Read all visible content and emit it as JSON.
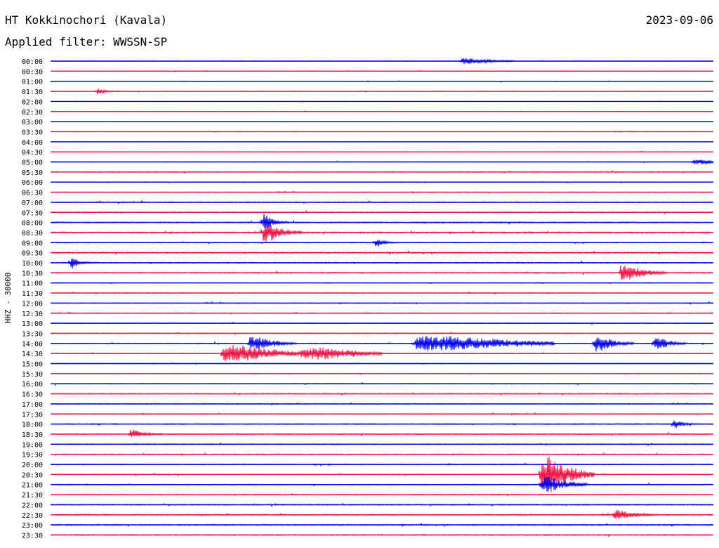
{
  "header": {
    "station": "HT Kokkinochori (Kavala)",
    "date": "2023-09-06",
    "filter_label": "Applied filter: WWSSN-SP"
  },
  "chart_data": {
    "type": "line",
    "title": "HT Kokkinochori (Kavala)",
    "ylabel": "HHZ - 30000",
    "categories": [
      "00:00",
      "00:30",
      "01:00",
      "01:30",
      "02:00",
      "02:30",
      "03:00",
      "03:30",
      "04:00",
      "04:30",
      "05:00",
      "05:30",
      "06:00",
      "06:30",
      "07:00",
      "07:30",
      "08:00",
      "08:30",
      "09:00",
      "09:30",
      "10:00",
      "10:30",
      "11:00",
      "11:30",
      "12:00",
      "12:30",
      "13:00",
      "13:30",
      "14:00",
      "14:30",
      "15:00",
      "15:30",
      "16:00",
      "16:30",
      "17:00",
      "17:30",
      "18:00",
      "18:30",
      "19:00",
      "19:30",
      "20:00",
      "20:30",
      "21:00",
      "21:30",
      "22:00",
      "22:30",
      "23:00",
      "23:30"
    ],
    "colors": [
      "#0000ee",
      "#ee1144"
    ],
    "noise_level": [
      0.15,
      0.2,
      0.2,
      0.2,
      0.1,
      0.2,
      0.1,
      0.2,
      0.1,
      0.15,
      0.2,
      0.3,
      0.2,
      0.3,
      0.35,
      0.35,
      0.4,
      0.5,
      0.3,
      0.45,
      0.4,
      0.4,
      0.2,
      0.3,
      0.3,
      0.3,
      0.25,
      0.3,
      0.3,
      0.3,
      0.2,
      0.2,
      0.3,
      0.35,
      0.3,
      0.3,
      0.35,
      0.35,
      0.3,
      0.35,
      0.35,
      0.3,
      0.3,
      0.3,
      0.4,
      0.4,
      0.4,
      0.4
    ],
    "events": [
      {
        "row": 0,
        "t": 0.62,
        "amp": 4,
        "dur": 0.05
      },
      {
        "row": 3,
        "t": 0.07,
        "amp": 4,
        "dur": 0.01
      },
      {
        "row": 10,
        "t": 0.97,
        "amp": 3,
        "dur": 0.04
      },
      {
        "row": 16,
        "t": 0.32,
        "amp": 15,
        "dur": 0.01
      },
      {
        "row": 17,
        "t": 0.32,
        "amp": 12,
        "dur": 0.03
      },
      {
        "row": 18,
        "t": 0.49,
        "amp": 6,
        "dur": 0.01
      },
      {
        "row": 20,
        "t": 0.03,
        "amp": 8,
        "dur": 0.01
      },
      {
        "row": 21,
        "t": 0.86,
        "amp": 10,
        "dur": 0.04
      },
      {
        "row": 28,
        "t": 0.3,
        "amp": 9,
        "dur": 0.04
      },
      {
        "row": 28,
        "t": 0.55,
        "amp": 10,
        "dur": 0.18
      },
      {
        "row": 28,
        "t": 0.82,
        "amp": 12,
        "dur": 0.03
      },
      {
        "row": 28,
        "t": 0.91,
        "amp": 12,
        "dur": 0.02
      },
      {
        "row": 29,
        "t": 0.26,
        "amp": 12,
        "dur": 0.09
      },
      {
        "row": 29,
        "t": 0.38,
        "amp": 9,
        "dur": 0.09
      },
      {
        "row": 36,
        "t": 0.94,
        "amp": 7,
        "dur": 0.01
      },
      {
        "row": 37,
        "t": 0.12,
        "amp": 6,
        "dur": 0.02
      },
      {
        "row": 41,
        "t": 0.74,
        "amp": 25,
        "dur": 0.05
      },
      {
        "row": 42,
        "t": 0.74,
        "amp": 12,
        "dur": 0.04
      },
      {
        "row": 45,
        "t": 0.85,
        "amp": 7,
        "dur": 0.03
      }
    ]
  }
}
